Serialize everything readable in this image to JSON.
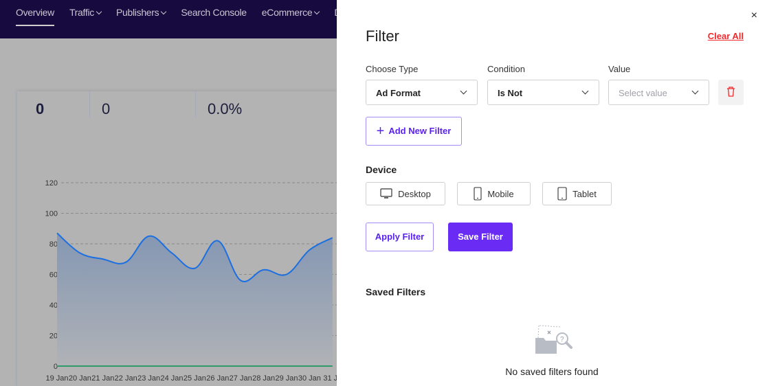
{
  "nav": {
    "items": [
      {
        "label": "Overview",
        "active": true,
        "dropdown": false
      },
      {
        "label": "Traffic",
        "dropdown": true
      },
      {
        "label": "Publishers",
        "dropdown": true
      },
      {
        "label": "Search Console",
        "dropdown": false
      },
      {
        "label": "eCommerce",
        "dropdown": true
      },
      {
        "label": "D",
        "dropdown": false
      }
    ]
  },
  "stats": [
    "0",
    "0",
    "0.0%"
  ],
  "chart_data": {
    "type": "area",
    "x": [
      "19 Jan",
      "20 Jan",
      "21 Jan",
      "22 Jan",
      "23 Jan",
      "24 Jan",
      "25 Jan",
      "26 Jan",
      "27 Jan",
      "28 Jan",
      "29 Jan",
      "30 Jan",
      "31 Ja"
    ],
    "series": [
      {
        "values": [
          87,
          74,
          70,
          68,
          85,
          74,
          64,
          82,
          56,
          63,
          60,
          76,
          84
        ],
        "color": "#1b6fe0"
      },
      {
        "values": [
          0,
          0,
          0,
          0,
          0,
          0,
          0,
          0,
          0,
          0,
          0,
          0,
          0
        ],
        "color": "#2e9a6a"
      }
    ],
    "yticks": [
      0,
      20,
      40,
      60,
      80,
      100,
      120
    ],
    "ylim": [
      0,
      120
    ],
    "grid": true
  },
  "drawer": {
    "title": "Filter",
    "clear_all": "Clear All",
    "close": "×",
    "choose_type_label": "Choose Type",
    "choose_type_value": "Ad Format",
    "condition_label": "Condition",
    "condition_value": "Is Not",
    "value_label": "Value",
    "value_placeholder": "Select value",
    "add_filter": "Add New Filter",
    "device_heading": "Device",
    "devices": [
      "Desktop",
      "Mobile",
      "Tablet"
    ],
    "apply": "Apply Filter",
    "save": "Save Filter",
    "saved_heading": "Saved Filters",
    "empty_text": "No saved filters found",
    "accent": "#6a2cf5",
    "danger": "#f0292d"
  }
}
